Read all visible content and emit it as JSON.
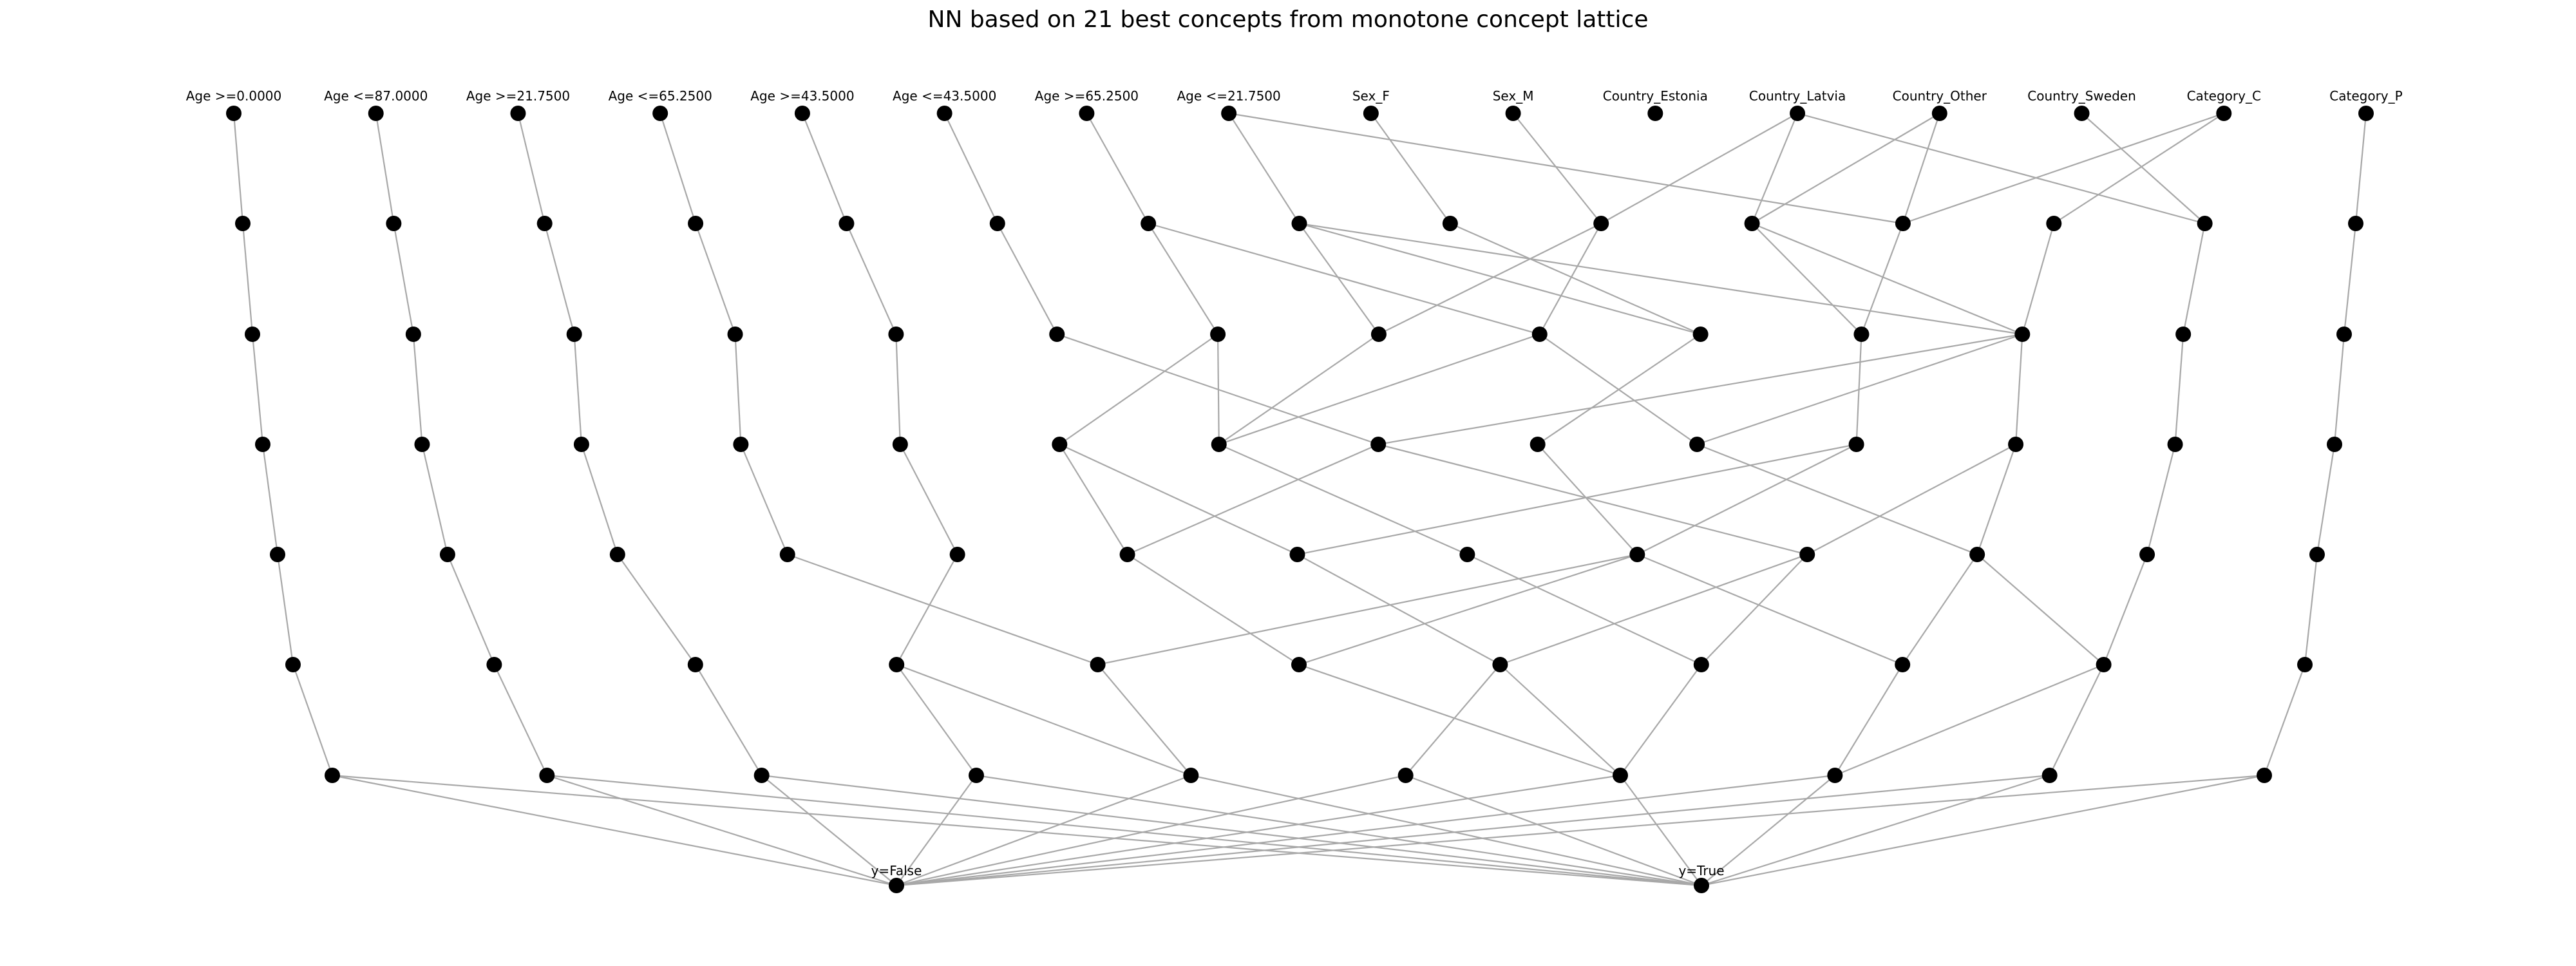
{
  "title": "NN based on 21 best concepts from monotone concept lattice",
  "input_labels": [
    "Age >=0.0000",
    "Age <=87.0000",
    "Age >=21.7500",
    "Age <=65.2500",
    "Age >=43.5000",
    "Age <=43.5000",
    "Age >=65.2500",
    "Age <=21.7500",
    "Sex_F",
    "Sex_M",
    "Country_Estonia",
    "Country_Latvia",
    "Country_Other",
    "Country_Sweden",
    "Category_C",
    "Category_P"
  ],
  "output_labels": [
    "y=False",
    "y=True"
  ],
  "layers": [
    [
      "in0",
      "in1",
      "in2",
      "in3",
      "in4",
      "in5",
      "in6",
      "in7",
      "in8",
      "in9",
      "in10",
      "in11",
      "in12",
      "in13",
      "in14",
      "in15"
    ],
    [
      "a0",
      "a1",
      "a2",
      "a3",
      "a4",
      "a5",
      "a6",
      "a7",
      "a8",
      "a9",
      "a10",
      "a11",
      "a12",
      "a13",
      "a14"
    ],
    [
      "b0",
      "b1",
      "b2",
      "b3",
      "b4",
      "b5",
      "b6",
      "b7",
      "b8",
      "b9",
      "b10",
      "b11",
      "b12",
      "b13"
    ],
    [
      "c0",
      "c1",
      "c2",
      "c3",
      "c4",
      "c5",
      "c6",
      "c7",
      "c8",
      "c9",
      "c10",
      "c11",
      "c12",
      "c13"
    ],
    [
      "d0",
      "d1",
      "d2",
      "d3",
      "d4",
      "d5",
      "d6",
      "d7",
      "d8",
      "d9",
      "d10",
      "d11",
      "d12"
    ],
    [
      "e0",
      "e1",
      "e2",
      "e3",
      "e4",
      "e5",
      "e6",
      "e7",
      "e8",
      "e9",
      "e10"
    ],
    [
      "f0",
      "f1",
      "f2",
      "f3",
      "f4",
      "f5",
      "f6",
      "f7",
      "f8",
      "f9"
    ],
    [
      "out0",
      "out1"
    ]
  ],
  "edges": [
    [
      "in0",
      "a0"
    ],
    [
      "in1",
      "a1"
    ],
    [
      "in2",
      "a2"
    ],
    [
      "in3",
      "a3"
    ],
    [
      "in4",
      "a4"
    ],
    [
      "in5",
      "a5"
    ],
    [
      "in6",
      "a6"
    ],
    [
      "in7",
      "a7"
    ],
    [
      "in7",
      "a11"
    ],
    [
      "in8",
      "a8"
    ],
    [
      "in9",
      "a9"
    ],
    [
      "in11",
      "a9"
    ],
    [
      "in11",
      "a10"
    ],
    [
      "in11",
      "a13"
    ],
    [
      "in12",
      "a10"
    ],
    [
      "in12",
      "a11"
    ],
    [
      "in14",
      "a11"
    ],
    [
      "in14",
      "a12"
    ],
    [
      "in13",
      "a13"
    ],
    [
      "in15",
      "a14"
    ],
    [
      "a0",
      "b0"
    ],
    [
      "a1",
      "b1"
    ],
    [
      "a2",
      "b2"
    ],
    [
      "a3",
      "b3"
    ],
    [
      "a4",
      "b4"
    ],
    [
      "a5",
      "b5"
    ],
    [
      "a6",
      "b6"
    ],
    [
      "a6",
      "b8"
    ],
    [
      "a7",
      "b7"
    ],
    [
      "a7",
      "b9"
    ],
    [
      "a7",
      "b11"
    ],
    [
      "a8",
      "b9"
    ],
    [
      "a9",
      "b7"
    ],
    [
      "a9",
      "b8"
    ],
    [
      "a10",
      "b10"
    ],
    [
      "a10",
      "b11"
    ],
    [
      "a11",
      "b10"
    ],
    [
      "a12",
      "b11"
    ],
    [
      "a13",
      "b12"
    ],
    [
      "a14",
      "b13"
    ],
    [
      "b0",
      "c0"
    ],
    [
      "b1",
      "c1"
    ],
    [
      "b2",
      "c2"
    ],
    [
      "b3",
      "c3"
    ],
    [
      "b4",
      "c4"
    ],
    [
      "b5",
      "c7"
    ],
    [
      "b6",
      "c5"
    ],
    [
      "b6",
      "c6"
    ],
    [
      "b7",
      "c6"
    ],
    [
      "b8",
      "c6"
    ],
    [
      "b8",
      "c9"
    ],
    [
      "b9",
      "c8"
    ],
    [
      "b10",
      "c10"
    ],
    [
      "b11",
      "c7"
    ],
    [
      "b11",
      "c9"
    ],
    [
      "b11",
      "c11"
    ],
    [
      "b12",
      "c12"
    ],
    [
      "b13",
      "c13"
    ],
    [
      "c0",
      "d0"
    ],
    [
      "c1",
      "d1"
    ],
    [
      "c2",
      "d2"
    ],
    [
      "c3",
      "d3"
    ],
    [
      "c4",
      "d4"
    ],
    [
      "c5",
      "d5"
    ],
    [
      "c5",
      "d6"
    ],
    [
      "c6",
      "d7"
    ],
    [
      "c7",
      "d5"
    ],
    [
      "c7",
      "d9"
    ],
    [
      "c8",
      "d8"
    ],
    [
      "c9",
      "d10"
    ],
    [
      "c10",
      "d6"
    ],
    [
      "c10",
      "d8"
    ],
    [
      "c11",
      "d9"
    ],
    [
      "c11",
      "d10"
    ],
    [
      "c12",
      "d11"
    ],
    [
      "c13",
      "d12"
    ],
    [
      "d0",
      "e0"
    ],
    [
      "d1",
      "e1"
    ],
    [
      "d2",
      "e2"
    ],
    [
      "d3",
      "e4"
    ],
    [
      "d4",
      "e3"
    ],
    [
      "d5",
      "e5"
    ],
    [
      "d6",
      "e6"
    ],
    [
      "d7",
      "e7"
    ],
    [
      "d8",
      "e8"
    ],
    [
      "d8",
      "e4"
    ],
    [
      "d8",
      "e5"
    ],
    [
      "d9",
      "e6"
    ],
    [
      "d9",
      "e7"
    ],
    [
      "d10",
      "e9"
    ],
    [
      "d10",
      "e8"
    ],
    [
      "d11",
      "e9"
    ],
    [
      "d12",
      "e10"
    ],
    [
      "e0",
      "f0"
    ],
    [
      "e1",
      "f1"
    ],
    [
      "e2",
      "f2"
    ],
    [
      "e3",
      "f3"
    ],
    [
      "e3",
      "f4"
    ],
    [
      "e4",
      "f4"
    ],
    [
      "e5",
      "f6"
    ],
    [
      "e6",
      "f5"
    ],
    [
      "e6",
      "f6"
    ],
    [
      "e7",
      "f6"
    ],
    [
      "e8",
      "f7"
    ],
    [
      "e9",
      "f7"
    ],
    [
      "e9",
      "f8"
    ],
    [
      "e10",
      "f9"
    ],
    [
      "f0",
      "out0"
    ],
    [
      "f1",
      "out0"
    ],
    [
      "f2",
      "out0"
    ],
    [
      "f3",
      "out0"
    ],
    [
      "f4",
      "out0"
    ],
    [
      "f5",
      "out0"
    ],
    [
      "f6",
      "out0"
    ],
    [
      "f7",
      "out0"
    ],
    [
      "f8",
      "out0"
    ],
    [
      "f9",
      "out0"
    ],
    [
      "f0",
      "out1"
    ],
    [
      "f1",
      "out1"
    ],
    [
      "f2",
      "out1"
    ],
    [
      "f3",
      "out1"
    ],
    [
      "f4",
      "out1"
    ],
    [
      "f5",
      "out1"
    ],
    [
      "f6",
      "out1"
    ],
    [
      "f7",
      "out1"
    ],
    [
      "f8",
      "out1"
    ],
    [
      "f9",
      "out1"
    ]
  ]
}
